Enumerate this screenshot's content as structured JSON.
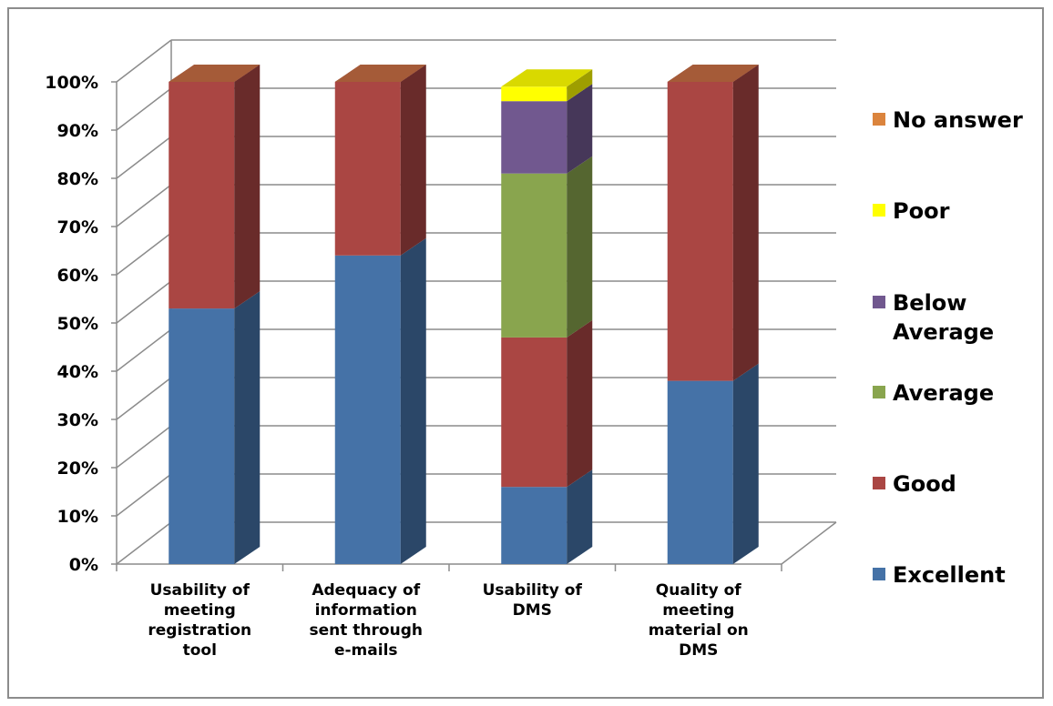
{
  "chart_data": {
    "type": "bar",
    "stacked": true,
    "percent_stacked": true,
    "three_d": true,
    "categories": [
      [
        "Usability of",
        "meeting",
        "registration",
        "tool"
      ],
      [
        "Adequacy of",
        "information",
        "sent through",
        "e-mails"
      ],
      [
        "Usability of",
        "DMS"
      ],
      [
        "Quality of",
        "meeting",
        "material on",
        "DMS"
      ]
    ],
    "series": [
      {
        "name": "Excellent",
        "legend_lines": [
          "Excellent"
        ],
        "color": "#4572a7",
        "values": [
          53,
          64,
          16,
          38
        ]
      },
      {
        "name": "Good",
        "legend_lines": [
          "Good"
        ],
        "color": "#aa4643",
        "values": [
          47,
          36,
          31,
          62
        ]
      },
      {
        "name": "Average",
        "legend_lines": [
          "Average"
        ],
        "color": "#89a54e",
        "values": [
          0,
          0,
          34,
          0
        ]
      },
      {
        "name": "Below Average",
        "legend_lines": [
          "Below",
          "Average"
        ],
        "color": "#71588f",
        "values": [
          0,
          0,
          15,
          0
        ]
      },
      {
        "name": "Poor",
        "legend_lines": [
          "Poor"
        ],
        "color": "#ffff00",
        "values": [
          0,
          0,
          3,
          0
        ]
      },
      {
        "name": "No answer",
        "legend_lines": [
          "No answer"
        ],
        "color": "#db843d",
        "values": [
          0,
          0,
          0,
          0
        ]
      }
    ],
    "y_ticks": [
      "0%",
      "10%",
      "20%",
      "30%",
      "40%",
      "50%",
      "60%",
      "70%",
      "80%",
      "90%",
      "100%"
    ],
    "ylim": [
      0,
      100
    ],
    "grid": true,
    "legend_position": "right",
    "title": "",
    "xlabel": "",
    "ylabel": ""
  }
}
